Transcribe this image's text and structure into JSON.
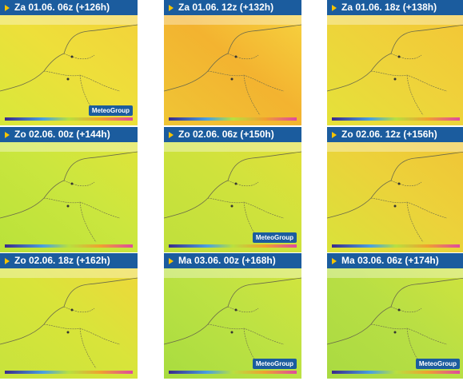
{
  "panels": [
    {
      "title": "Za 01.06. 06z (+126h)",
      "logo": "MeteoGroup"
    },
    {
      "title": "Za 01.06. 12z (+132h)"
    },
    {
      "title": "Za 01.06. 18z (+138h)"
    },
    {
      "title": "Zo 02.06. 00z (+144h)"
    },
    {
      "title": "Zo 02.06. 06z (+150h)",
      "logo": "MeteoGroup"
    },
    {
      "title": "Zo 02.06. 12z (+156h)"
    },
    {
      "title": "Zo 02.06. 18z (+162h)"
    },
    {
      "title": "Ma 03.06. 00z (+168h)",
      "logo": "MeteoGroup"
    },
    {
      "title": "Ma 03.06. 06z (+174h)",
      "logo": "MeteoGroup"
    }
  ]
}
